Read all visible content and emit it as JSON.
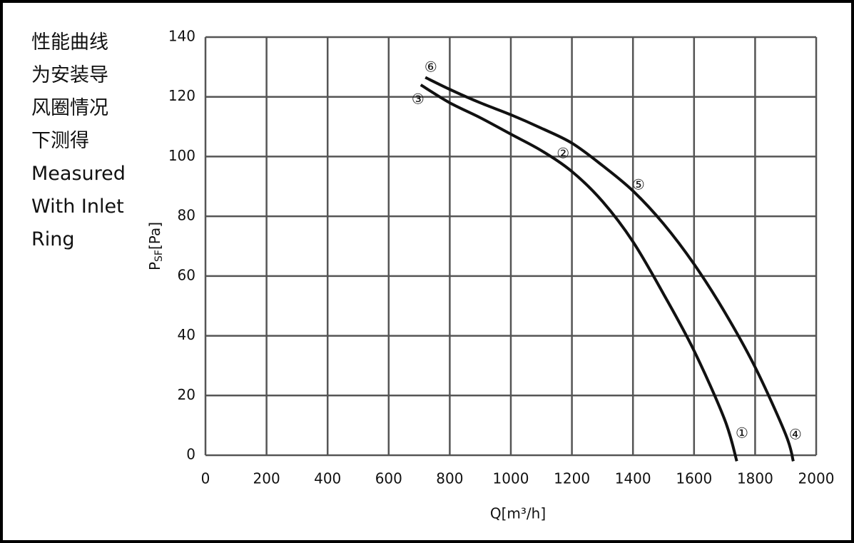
{
  "chart_data": {
    "type": "line",
    "note": [
      "性能曲线",
      "为安装导",
      "风圈情况",
      "下测得",
      "Measured",
      "With Inlet",
      "Ring"
    ],
    "x_label": "Q[m³/h]",
    "y_label": {
      "symbol": "P",
      "subscript": "SF",
      "unit": "[Pa]"
    },
    "xlim": [
      0,
      2000
    ],
    "xticks": [
      0,
      200,
      400,
      600,
      800,
      1000,
      1200,
      1400,
      1600,
      1800,
      2000
    ],
    "ylim": [
      0,
      140
    ],
    "yticks": [
      0,
      20,
      40,
      60,
      80,
      100,
      120,
      140
    ],
    "grid": true,
    "series": [
      {
        "color": "#111111",
        "x": [
          705,
          800,
          900,
          1000,
          1100,
          1200,
          1300,
          1400,
          1500,
          1600,
          1700,
          1740
        ],
        "values": [
          124,
          118,
          113,
          107.5,
          102,
          95,
          85,
          71.5,
          54,
          35,
          12,
          -2
        ]
      },
      {
        "color": "#111111",
        "x": [
          720,
          800,
          900,
          1000,
          1100,
          1200,
          1300,
          1400,
          1500,
          1600,
          1700,
          1800,
          1900,
          1925
        ],
        "values": [
          126.5,
          122.5,
          118,
          114,
          109.5,
          104.5,
          97,
          88.5,
          77.5,
          64,
          48,
          29.5,
          7,
          -2
        ]
      }
    ],
    "annotations": [
      {
        "text": "①",
        "x": 1757,
        "y": 7.2
      },
      {
        "text": "②",
        "x": 1171,
        "y": 100.8
      },
      {
        "text": "③",
        "x": 696,
        "y": 119
      },
      {
        "text": "④",
        "x": 1932,
        "y": 6.7
      },
      {
        "text": "⑤",
        "x": 1418,
        "y": 90.3
      },
      {
        "text": "⑥",
        "x": 738,
        "y": 129.7
      }
    ]
  }
}
